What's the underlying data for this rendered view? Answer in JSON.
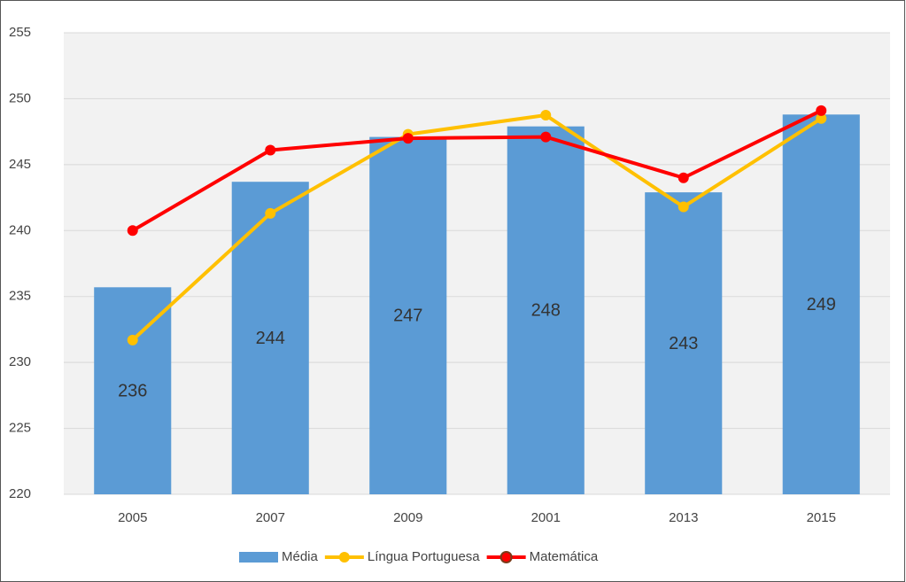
{
  "chart_data": {
    "type": "bar_line",
    "categories": [
      "2005",
      "2007",
      "2009",
      "2001",
      "2013",
      "2015"
    ],
    "series": [
      {
        "name": "Média",
        "type": "bar",
        "color": "#5b9bd5",
        "values": [
          235.7,
          243.7,
          247.1,
          247.9,
          242.9,
          248.8
        ],
        "value_labels": [
          "236",
          "244",
          "247",
          "248",
          "243",
          "249"
        ]
      },
      {
        "name": "Língua Portuguesa",
        "type": "line",
        "color": "#ffc000",
        "values": [
          231.7,
          241.3,
          247.3,
          248.75,
          241.8,
          248.5
        ]
      },
      {
        "name": "Matemática",
        "type": "line",
        "color": "#ff0000",
        "values": [
          240.0,
          246.1,
          247.0,
          247.1,
          244.0,
          249.1
        ]
      }
    ],
    "ylim": [
      220,
      255
    ],
    "yticks": [
      220,
      225,
      230,
      235,
      240,
      245,
      250,
      255
    ],
    "grid": true,
    "legend": "bottom"
  }
}
